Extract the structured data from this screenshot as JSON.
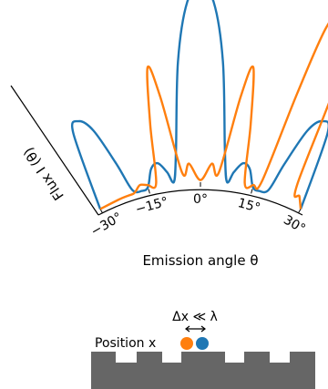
{
  "chart_data": {
    "type": "line",
    "xlabel": "Emission angle θ",
    "ylabel": "Flux I (θ)",
    "tick_labels": [
      "−30°",
      "−15°",
      "0°",
      "15°",
      "30°"
    ],
    "xlim": [
      -30,
      30
    ],
    "series": [
      {
        "color": "#1f77b4",
        "x": [
          -30,
          -27,
          -25,
          -23,
          -21,
          -19.5,
          -17,
          -15,
          -13,
          -11,
          -9,
          -7.5,
          -6,
          -4,
          -2,
          0,
          2,
          4,
          6,
          7.5,
          9,
          11,
          13,
          15,
          17,
          19.5,
          21,
          23,
          25,
          27,
          30
        ],
        "y": [
          0,
          0.38,
          0.42,
          0.35,
          0.16,
          0.02,
          0.0,
          0.01,
          0.09,
          0.11,
          0.06,
          0.01,
          0.16,
          0.58,
          0.86,
          0.93,
          0.86,
          0.58,
          0.16,
          0.01,
          0.06,
          0.11,
          0.09,
          0.01,
          0.0,
          0.02,
          0.16,
          0.35,
          0.42,
          0.38,
          0
        ]
      },
      {
        "color": "#ff7f0e",
        "x": [
          -30,
          -24,
          -21,
          -19.5,
          -18.5,
          -17,
          -15,
          -12.5,
          -11,
          -9.5,
          -8,
          -5,
          -3,
          0,
          3,
          5,
          8,
          9.5,
          11,
          12.5,
          15,
          17,
          18.5,
          19.5,
          21,
          24,
          26,
          28,
          30
        ],
        "y": [
          0,
          0.0,
          0.0,
          0.0,
          0.01,
          0.03,
          0.02,
          0.02,
          0.3,
          0.57,
          0.42,
          0.05,
          0.09,
          0.01,
          0.09,
          0.05,
          0.42,
          0.57,
          0.3,
          0.02,
          0.02,
          0.05,
          0.5,
          0.84,
          0.94,
          0.72,
          0.1,
          0.05,
          0
        ]
      }
    ]
  },
  "inset": {
    "label": "Position x",
    "delta": "Δx ≪ λ",
    "dot_colors": [
      "#ff7f0e",
      "#1f77b4"
    ],
    "surface_color": "#666666"
  }
}
